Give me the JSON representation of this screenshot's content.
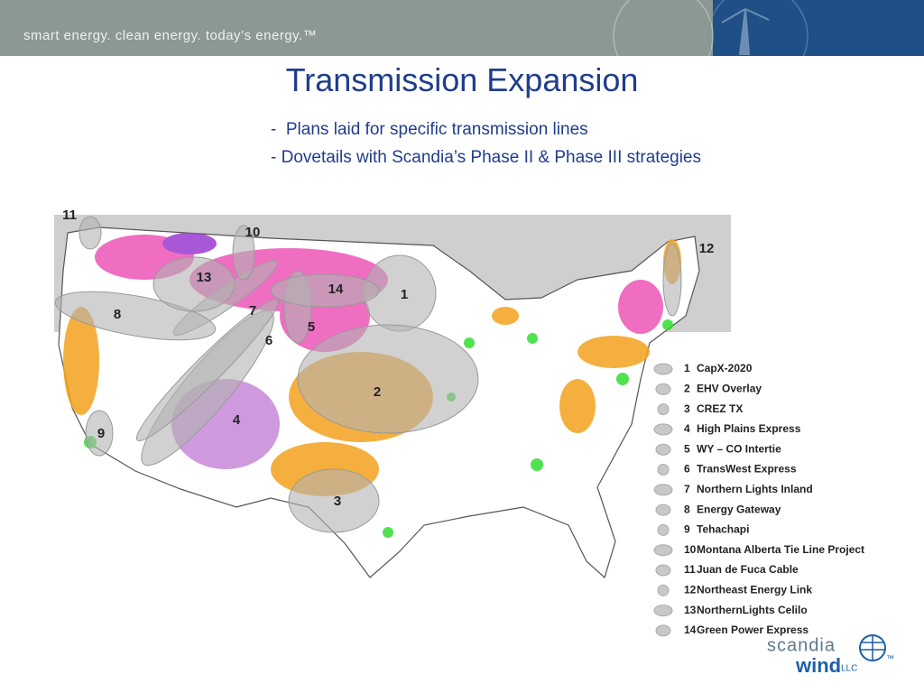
{
  "header": {
    "tagline": "smart energy. clean energy. today’s energy.™"
  },
  "title": "Transmission Expansion",
  "bullets": [
    "-  Plans laid for specific transmission lines",
    "- Dovetails with Scandia’s Phase II & Phase III strategies"
  ],
  "map": {
    "labels": [
      "1",
      "2",
      "3",
      "4",
      "5",
      "6",
      "7",
      "8",
      "9",
      "10",
      "11",
      "12",
      "13",
      "14"
    ]
  },
  "legend": {
    "items": [
      {
        "number": "1",
        "label": "CapX-2020"
      },
      {
        "number": "2",
        "label": "EHV Overlay"
      },
      {
        "number": "3",
        "label": "CREZ TX"
      },
      {
        "number": "4",
        "label": "High Plains Express"
      },
      {
        "number": "5",
        "label": "WY – CO Intertie"
      },
      {
        "number": "6",
        "label": "TransWest Express"
      },
      {
        "number": "7",
        "label": "Northern Lights Inland"
      },
      {
        "number": "8",
        "label": "Energy Gateway"
      },
      {
        "number": "9",
        "label": "Tehachapi"
      },
      {
        "number": "10",
        "label": "Montana Alberta Tie Line Project"
      },
      {
        "number": "11",
        "label": "Juan de Fuca Cable"
      },
      {
        "number": "12",
        "label": "Northeast Energy Link"
      },
      {
        "number": "13",
        "label": "NorthernLights Celilo"
      },
      {
        "number": "14",
        "label": "Green Power Express"
      }
    ]
  },
  "logo": {
    "word1": "scandia",
    "word2": "wind",
    "suffix": "LLC",
    "mark": "™"
  }
}
